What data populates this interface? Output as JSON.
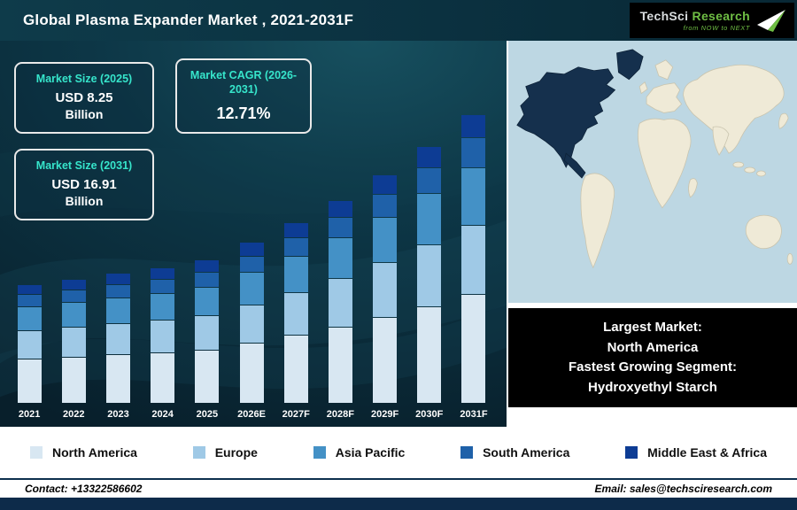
{
  "header": {
    "title": "Global Plasma Expander Market , 2021-2031F",
    "logo": {
      "brand_primary": "TechSci",
      "brand_secondary": "Research",
      "tagline": "from NOW to NEXT"
    }
  },
  "info_boxes": [
    {
      "label": "Market Size (2025)",
      "value": "USD 8.25",
      "unit": "Billion"
    },
    {
      "label": "Market CAGR (2026-2031)",
      "value": "12.71%"
    },
    {
      "label": "Market Size (2031)",
      "value": "USD 16.91",
      "unit": "Billion"
    }
  ],
  "map_callout": {
    "line1": "Largest Market:",
    "line2": "North America",
    "line3": "Fastest Growing Segment:",
    "line4": "Hydroxyethyl Starch"
  },
  "chart_data": {
    "type": "bar",
    "stacked": true,
    "title": "Global Plasma Expander Market , 2021-2031F",
    "unit": "USD Billion",
    "categories": [
      "2021",
      "2022",
      "2023",
      "2024",
      "2025",
      "2026E",
      "2027F",
      "2028F",
      "2029F",
      "2030F",
      "2031F"
    ],
    "series": [
      {
        "name": "North America",
        "color": "#d8e7f2",
        "values": [
          2.58,
          2.7,
          2.83,
          2.96,
          3.13,
          3.53,
          3.98,
          4.49,
          5.06,
          5.7,
          6.43
        ]
      },
      {
        "name": "Europe",
        "color": "#9fc9e6",
        "values": [
          1.63,
          1.7,
          1.79,
          1.87,
          1.98,
          2.23,
          2.52,
          2.83,
          3.19,
          3.6,
          4.06
        ]
      },
      {
        "name": "Asia Pacific",
        "color": "#4491c6",
        "values": [
          1.36,
          1.42,
          1.49,
          1.56,
          1.65,
          1.86,
          2.1,
          2.36,
          2.66,
          3.0,
          3.38
        ]
      },
      {
        "name": "South America",
        "color": "#1f61a9",
        "values": [
          0.68,
          0.71,
          0.75,
          0.78,
          0.83,
          0.93,
          1.05,
          1.18,
          1.33,
          1.5,
          1.69
        ]
      },
      {
        "name": "Middle East & Africa",
        "color": "#0d3c94",
        "values": [
          0.55,
          0.57,
          0.6,
          0.62,
          0.66,
          0.74,
          0.84,
          0.94,
          1.06,
          1.2,
          1.35
        ]
      }
    ],
    "totals": [
      6.8,
      7.1,
      7.46,
      7.79,
      8.25,
      9.29,
      10.49,
      11.8,
      13.3,
      15.0,
      16.91
    ],
    "ylim": [
      0,
      17.5
    ],
    "grid": false,
    "legend_position": "bottom"
  },
  "legend": [
    {
      "label": "North America",
      "color": "#d8e7f2"
    },
    {
      "label": "Europe",
      "color": "#9fc9e6"
    },
    {
      "label": "Asia Pacific",
      "color": "#4491c6"
    },
    {
      "label": "South America",
      "color": "#1f61a9"
    },
    {
      "label": "Middle East & Africa",
      "color": "#0d3c94"
    }
  ],
  "footer": {
    "contact": "Contact: +13322586602",
    "email": "Email: sales@techsciresearch.com"
  },
  "colors": {
    "header_bg": "#0b3140",
    "chart_bg": "#0d3747",
    "accent_teal": "#36e5cb",
    "logo_green": "#6fbe44",
    "map_ocean": "#bdd7e3",
    "map_land": "#efead7",
    "map_highlight": "#15304d",
    "footer_bar": "#0d2b4a",
    "callout_bg": "#000000"
  }
}
